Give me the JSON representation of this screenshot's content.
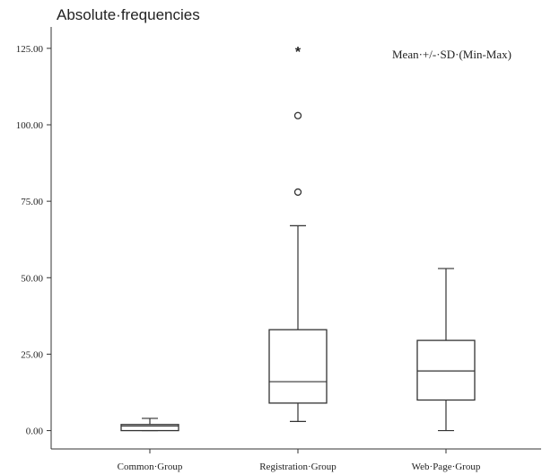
{
  "chart_data": {
    "type": "boxplot",
    "title": "Absolute·frequencies",
    "annotation": "Mean·+/-·SD·(Min-Max)",
    "xlabel": "",
    "ylabel": "",
    "ylim": [
      -6,
      132
    ],
    "yticks": [
      0,
      25,
      50,
      75,
      100,
      125
    ],
    "ytick_labels": [
      "0.00",
      "25.00",
      "50.00",
      "75.00",
      "100.00",
      "125.00"
    ],
    "categories": [
      "Common·Group",
      "Registration·Group",
      "Web·Page·Group"
    ],
    "boxes": [
      {
        "min": 0,
        "q1": 0,
        "median": 1.5,
        "q3": 2,
        "max": 4,
        "outliers": [],
        "extremes": []
      },
      {
        "min": 3,
        "q1": 9,
        "median": 16,
        "q3": 33,
        "max": 67,
        "outliers": [
          78,
          103
        ],
        "extremes": [
          124
        ]
      },
      {
        "min": 0,
        "q1": 10,
        "median": 19.5,
        "q3": 29.5,
        "max": 53,
        "outliers": [],
        "extremes": []
      }
    ],
    "grid": false,
    "legend": "none"
  }
}
